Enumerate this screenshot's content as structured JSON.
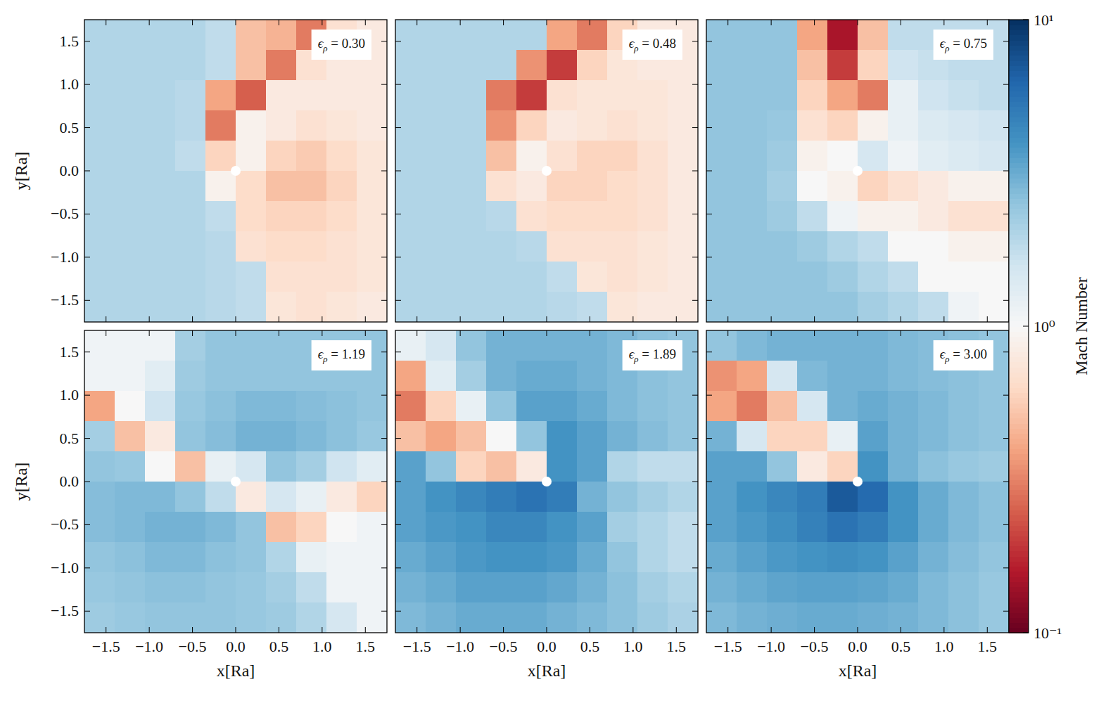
{
  "chart_data": [
    {
      "type": "heatmap",
      "title": "ϵρ = 0.30",
      "tick_labels": "y",
      "ylabel": "y[Ra]",
      "xlim": [
        -1.75,
        1.75
      ],
      "ylim": [
        -1.75,
        1.75
      ],
      "xticks": [
        -1.5,
        -1.0,
        -0.5,
        0.0,
        0.5,
        1.0,
        1.5
      ],
      "yticks": [
        {
          "value": -1.5,
          "label": "−1.5"
        },
        {
          "value": -1.0,
          "label": "−1.0"
        },
        {
          "value": -0.5,
          "label": "−0.5"
        },
        {
          "value": 0.0,
          "label": "0.0"
        },
        0.5,
        {
          "value": 1.0,
          "label": "1.0"
        },
        1.5
      ],
      "x": [
        -1.575,
        -1.225,
        -0.875,
        -0.525,
        -0.175,
        0.175,
        0.525,
        0.875,
        1.225,
        1.575
      ],
      "y": [
        1.575,
        1.225,
        0.875,
        0.525,
        0.175,
        -0.175,
        -0.525,
        -0.875,
        -1.225,
        -1.575
      ],
      "values": [
        [
          2,
          2,
          2,
          2,
          1.8,
          0.5,
          0.45,
          0.3,
          0.7,
          0.8
        ],
        [
          2,
          2,
          2,
          2,
          1.8,
          0.5,
          0.3,
          0.7,
          0.8,
          0.8
        ],
        [
          2,
          2,
          2,
          1.9,
          0.4,
          0.25,
          0.8,
          0.8,
          0.8,
          0.8
        ],
        [
          2,
          2,
          2,
          1.9,
          0.3,
          0.9,
          0.8,
          0.7,
          0.75,
          0.8
        ],
        [
          2,
          2,
          2,
          1.8,
          0.6,
          0.9,
          0.6,
          0.55,
          0.65,
          0.75
        ],
        [
          2,
          2,
          2,
          2,
          0.9,
          0.65,
          0.5,
          0.5,
          0.6,
          0.75
        ],
        [
          2,
          2,
          2,
          2,
          1.8,
          0.65,
          0.6,
          0.6,
          0.65,
          0.75
        ],
        [
          2,
          2,
          2,
          2,
          1.9,
          0.7,
          0.65,
          0.65,
          0.7,
          0.75
        ],
        [
          2,
          2,
          2,
          2,
          1.9,
          1.8,
          0.7,
          0.7,
          0.7,
          0.75
        ],
        [
          2,
          2,
          2,
          2,
          1.9,
          1.8,
          0.75,
          0.7,
          0.75,
          0.8
        ]
      ]
    },
    {
      "type": "heatmap",
      "title": "ϵρ = 0.48",
      "tick_labels": false,
      "xlim": [
        -1.75,
        1.75
      ],
      "ylim": [
        -1.75,
        1.75
      ],
      "xticks": [
        -1.5,
        -1.0,
        -0.5,
        0.0,
        0.5,
        1.0,
        1.5
      ],
      "yticks": [
        -1.5,
        -1.0,
        -0.5,
        0.0,
        0.5,
        1.0,
        1.5
      ],
      "x": [
        -1.575,
        -1.225,
        -0.875,
        -0.525,
        -0.175,
        0.175,
        0.525,
        0.875,
        1.225,
        1.575
      ],
      "y": [
        1.575,
        1.225,
        0.875,
        0.525,
        0.175,
        -0.175,
        -0.525,
        -0.875,
        -1.225,
        -1.575
      ],
      "values": [
        [
          2,
          2,
          2,
          2,
          2,
          0.4,
          0.3,
          0.6,
          0.8,
          0.8
        ],
        [
          2,
          2,
          2,
          2,
          0.35,
          0.2,
          0.6,
          0.75,
          0.8,
          0.8
        ],
        [
          2,
          2,
          2,
          0.3,
          0.2,
          0.7,
          0.75,
          0.75,
          0.75,
          0.8
        ],
        [
          2,
          2,
          2,
          0.35,
          0.6,
          0.8,
          0.75,
          0.7,
          0.75,
          0.8
        ],
        [
          2,
          2,
          2,
          0.5,
          0.9,
          0.7,
          0.6,
          0.6,
          0.7,
          0.8
        ],
        [
          2,
          2,
          2,
          0.7,
          0.8,
          0.6,
          0.6,
          0.65,
          0.7,
          0.8
        ],
        [
          2,
          2,
          2,
          1.9,
          0.7,
          0.65,
          0.65,
          0.65,
          0.7,
          0.8
        ],
        [
          2,
          2,
          2,
          2,
          1.9,
          0.7,
          0.7,
          0.7,
          0.75,
          0.8
        ],
        [
          2,
          2,
          2,
          2,
          2,
          1.8,
          0.75,
          0.7,
          0.75,
          0.8
        ],
        [
          2,
          2,
          2,
          2,
          2,
          1.9,
          1.8,
          0.75,
          0.8,
          0.8
        ]
      ]
    },
    {
      "type": "heatmap",
      "title": "ϵρ = 0.75",
      "tick_labels": false,
      "xlim": [
        -1.75,
        1.75
      ],
      "ylim": [
        -1.75,
        1.75
      ],
      "xticks": [
        -1.5,
        -1.0,
        -0.5,
        0.0,
        0.5,
        1.0,
        1.5
      ],
      "yticks": [
        -1.5,
        -1.0,
        -0.5,
        0.0,
        0.5,
        1.0,
        1.5
      ],
      "x": [
        -1.575,
        -1.225,
        -0.875,
        -0.525,
        -0.175,
        0.175,
        0.525,
        0.875,
        1.225,
        1.575
      ],
      "y": [
        1.575,
        1.225,
        0.875,
        0.525,
        0.175,
        -0.175,
        -0.525,
        -0.875,
        -1.225,
        -1.575
      ],
      "values": [
        [
          2.5,
          2.5,
          2.5,
          0.4,
          0.15,
          0.5,
          1.8,
          1.8,
          1.8,
          1.8
        ],
        [
          2.5,
          2.5,
          2.5,
          0.5,
          0.2,
          0.6,
          1.6,
          1.7,
          1.8,
          1.8
        ],
        [
          2.5,
          2.5,
          2.5,
          0.6,
          0.4,
          0.3,
          1.2,
          1.6,
          1.7,
          1.8
        ],
        [
          2.5,
          2.5,
          2.4,
          0.7,
          0.6,
          0.9,
          1.2,
          1.4,
          1.5,
          1.6
        ],
        [
          2.5,
          2.5,
          2.3,
          0.9,
          1.0,
          1.5,
          1.1,
          1.3,
          1.4,
          1.5
        ],
        [
          2.5,
          2.5,
          2.2,
          1.0,
          0.9,
          0.6,
          0.7,
          0.8,
          0.9,
          0.9
        ],
        [
          2.5,
          2.5,
          2.3,
          1.8,
          1.1,
          0.9,
          0.9,
          0.8,
          0.7,
          0.7
        ],
        [
          2.5,
          2.5,
          2.5,
          2.3,
          2.0,
          1.8,
          1.0,
          1.0,
          0.9,
          0.9
        ],
        [
          2.5,
          2.5,
          2.5,
          2.5,
          2.3,
          2.0,
          1.8,
          1.0,
          1.0,
          1.0
        ],
        [
          2.5,
          2.5,
          2.5,
          2.5,
          2.5,
          2.2,
          2.0,
          1.8,
          1.1,
          1.0
        ]
      ]
    },
    {
      "type": "heatmap",
      "title": "ϵρ = 1.19",
      "tick_labels": true,
      "xlabel": "x[Ra]",
      "ylabel": "y[Ra]",
      "xlim": [
        -1.75,
        1.75
      ],
      "ylim": [
        -1.75,
        1.75
      ],
      "xticks": [
        {
          "value": -1.5,
          "label": "−1.5"
        },
        {
          "value": -1.0,
          "label": "−1.0"
        },
        {
          "value": -0.5,
          "label": "−0.5"
        },
        {
          "value": 0.0,
          "label": "0.0"
        },
        0.5,
        {
          "value": 1.0,
          "label": "1.0"
        },
        1.5
      ],
      "yticks": [
        {
          "value": -1.5,
          "label": "−1.5"
        },
        {
          "value": -1.0,
          "label": "−1.0"
        },
        {
          "value": -0.5,
          "label": "−0.5"
        },
        {
          "value": 0.0,
          "label": "0.0"
        },
        0.5,
        {
          "value": 1.0,
          "label": "1.0"
        },
        1.5
      ],
      "x": [
        -1.575,
        -1.225,
        -0.875,
        -0.525,
        -0.175,
        0.175,
        0.525,
        0.875,
        1.225,
        1.575
      ],
      "y": [
        1.575,
        1.225,
        0.875,
        0.525,
        0.175,
        -0.175,
        -0.525,
        -0.875,
        -1.225,
        -1.575
      ],
      "values": [
        [
          1.1,
          1.1,
          1.1,
          2.2,
          2.5,
          2.5,
          2.5,
          2.5,
          2.5,
          2.5
        ],
        [
          1.1,
          1.1,
          1.3,
          2.3,
          2.5,
          2.5,
          2.5,
          2.5,
          2.5,
          2.5
        ],
        [
          0.4,
          1.0,
          1.6,
          2.4,
          2.6,
          2.8,
          2.8,
          2.7,
          2.6,
          2.5
        ],
        [
          2.2,
          0.5,
          0.8,
          2.5,
          2.7,
          3.0,
          3.0,
          2.8,
          2.6,
          2.4
        ],
        [
          2.5,
          2.4,
          1.0,
          0.5,
          1.2,
          1.5,
          2.5,
          2.2,
          1.6,
          1.3
        ],
        [
          2.7,
          2.8,
          2.8,
          2.5,
          1.8,
          0.8,
          1.5,
          1.2,
          0.8,
          0.6
        ],
        [
          2.7,
          2.8,
          3.0,
          3.0,
          2.8,
          2.5,
          0.5,
          0.6,
          1.0,
          1.1
        ],
        [
          2.5,
          2.6,
          2.8,
          2.8,
          2.6,
          2.5,
          2.0,
          1.2,
          1.1,
          1.1
        ],
        [
          2.4,
          2.5,
          2.6,
          2.6,
          2.5,
          2.4,
          2.2,
          1.8,
          1.1,
          1.1
        ],
        [
          2.3,
          2.4,
          2.5,
          2.5,
          2.5,
          2.4,
          2.3,
          2.0,
          1.5,
          1.1
        ]
      ]
    },
    {
      "type": "heatmap",
      "title": "ϵρ = 1.89",
      "tick_labels": "x",
      "xlabel": "x[Ra]",
      "xlim": [
        -1.75,
        1.75
      ],
      "ylim": [
        -1.75,
        1.75
      ],
      "xticks": [
        {
          "value": -1.5,
          "label": "−1.5"
        },
        {
          "value": -1.0,
          "label": "−1.0"
        },
        {
          "value": -0.5,
          "label": "−0.5"
        },
        {
          "value": 0.0,
          "label": "0.0"
        },
        0.5,
        {
          "value": 1.0,
          "label": "1.0"
        },
        1.5
      ],
      "yticks": [
        -1.5,
        -1.0,
        -0.5,
        0.0,
        0.5,
        1.0,
        1.5
      ],
      "x": [
        -1.575,
        -1.225,
        -0.875,
        -0.525,
        -0.175,
        0.175,
        0.525,
        0.875,
        1.225,
        1.575
      ],
      "y": [
        1.575,
        1.225,
        0.875,
        0.525,
        0.175,
        -0.175,
        -0.525,
        -0.875,
        -1.225,
        -1.575
      ],
      "values": [
        [
          1.2,
          1.5,
          2.5,
          3,
          3,
          3,
          3,
          2.8,
          2.6,
          2.5
        ],
        [
          0.4,
          1.3,
          2.2,
          3,
          3.2,
          3.2,
          3,
          2.8,
          2.6,
          2.5
        ],
        [
          0.3,
          0.6,
          1.2,
          2.5,
          3.5,
          3.5,
          3.2,
          2.8,
          2.6,
          2.5
        ],
        [
          0.5,
          0.4,
          0.5,
          1.0,
          2.5,
          4,
          3.5,
          3,
          2.7,
          2.5
        ],
        [
          3.5,
          2.5,
          0.6,
          0.5,
          0.8,
          4,
          3.5,
          2,
          1.8,
          1.8
        ],
        [
          3.5,
          4,
          4.5,
          5,
          5.5,
          5,
          3,
          2.5,
          2.2,
          2
        ],
        [
          3.5,
          3.8,
          4,
          4.5,
          4.5,
          4,
          3.5,
          2.2,
          2,
          1.8
        ],
        [
          3.2,
          3.5,
          3.8,
          4,
          4,
          3.8,
          3.2,
          2.5,
          2,
          1.8
        ],
        [
          3,
          3.2,
          3.5,
          3.5,
          3.5,
          3.3,
          3,
          2.6,
          2.2,
          2
        ],
        [
          2.8,
          3,
          3.2,
          3.2,
          3.2,
          3,
          2.8,
          2.6,
          2.3,
          2.1
        ]
      ]
    },
    {
      "type": "heatmap",
      "title": "ϵρ = 3.00",
      "tick_labels": "x",
      "xlabel": "x[Ra]",
      "xlim": [
        -1.75,
        1.75
      ],
      "ylim": [
        -1.75,
        1.75
      ],
      "xticks": [
        {
          "value": -1.5,
          "label": "−1.5"
        },
        {
          "value": -1.0,
          "label": "−1.0"
        },
        {
          "value": -0.5,
          "label": "−0.5"
        },
        {
          "value": 0.0,
          "label": "0.0"
        },
        0.5,
        {
          "value": 1.0,
          "label": "1.0"
        },
        1.5
      ],
      "yticks": [
        -1.5,
        -1.0,
        -0.5,
        0.0,
        0.5,
        1.0,
        1.5
      ],
      "x": [
        -1.575,
        -1.225,
        -0.875,
        -0.525,
        -0.175,
        0.175,
        0.525,
        0.875,
        1.225,
        1.575
      ],
      "y": [
        1.575,
        1.225,
        0.875,
        0.525,
        0.175,
        -0.175,
        -0.525,
        -0.875,
        -1.225,
        -1.575
      ],
      "values": [
        [
          2.5,
          2.8,
          3,
          3,
          3,
          3,
          2.8,
          2.7,
          2.6,
          2.5
        ],
        [
          0.35,
          0.4,
          1.5,
          2.8,
          3,
          3,
          2.8,
          2.7,
          2.6,
          2.5
        ],
        [
          0.4,
          0.3,
          0.5,
          1.5,
          3,
          3.2,
          3,
          2.8,
          2.6,
          2.5
        ],
        [
          3,
          1.5,
          0.6,
          0.6,
          1.2,
          3.5,
          3,
          2.8,
          2.6,
          2.5
        ],
        [
          3.5,
          3.5,
          2.5,
          0.8,
          0.6,
          4,
          3,
          2.6,
          2.4,
          2.3
        ],
        [
          3.5,
          4,
          4.5,
          5,
          7,
          6,
          4,
          3.2,
          2.8,
          2.6
        ],
        [
          3.5,
          3.8,
          4.2,
          4.8,
          5.5,
          5,
          4,
          3.2,
          2.8,
          2.6
        ],
        [
          3.2,
          3.5,
          3.8,
          4,
          4.2,
          4,
          3.5,
          3,
          2.7,
          2.5
        ],
        [
          3,
          3.2,
          3.4,
          3.5,
          3.5,
          3.4,
          3.2,
          2.8,
          2.6,
          2.4
        ],
        [
          2.8,
          3,
          3.1,
          3.2,
          3.2,
          3.1,
          3,
          2.8,
          2.6,
          2.4
        ]
      ]
    },
    {
      "type": "colorbar",
      "label": "Mach Number",
      "log": true,
      "ylim": [
        0.1,
        10
      ],
      "yticks": [
        {
          "value": 0.1,
          "label": "10⁻¹"
        },
        {
          "value": 1,
          "label": "10⁰"
        },
        {
          "value": 10,
          "label": "10¹"
        }
      ]
    }
  ]
}
